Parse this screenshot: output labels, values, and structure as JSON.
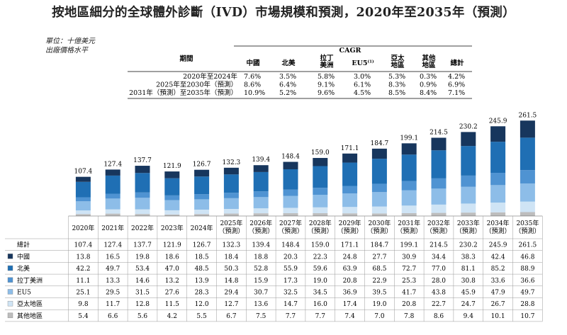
{
  "title": "按地區細分的全球體外診斷（IVD）市場規模和預測，2020年至2035年（預測）",
  "unit_note": "單位：十億美元",
  "price_note": "出廠價格水平",
  "cagr_table": {
    "header": "CAGR",
    "period_label": "期間",
    "columns": [
      "中國",
      "北美",
      "拉丁\n美洲",
      "EU5",
      "亞太\n地區",
      "其他\n地區",
      "總計"
    ],
    "eu5_footnote": "(1)",
    "rows": [
      {
        "period": "2020年至2024年",
        "values": [
          "7.6%",
          "3.5%",
          "5.8%",
          "3.0%",
          "5.3%",
          "0.3%",
          "4.2%"
        ]
      },
      {
        "period": "2025年至2030年（預測）",
        "values": [
          "8.6%",
          "6.4%",
          "9.1%",
          "6.1%",
          "8.3%",
          "0.9%",
          "6.9%"
        ]
      },
      {
        "period": "2031年（預測）至2035年（預測）",
        "values": [
          "10.9%",
          "5.2%",
          "9.6%",
          "4.5%",
          "8.5%",
          "8.4%",
          "7.1%"
        ]
      }
    ]
  },
  "chart_data": {
    "type": "bar",
    "stacked": true,
    "categories": [
      "2020年",
      "2021年",
      "2022年",
      "2023年",
      "2024年",
      "2025年\n（預測）",
      "2026年\n（預測）",
      "2027年\n（預測）",
      "2028年\n（預測）",
      "2029年\n（預測）",
      "2030年\n（預測）",
      "2031年\n（預測）",
      "2032年\n（預測）",
      "2033年\n（預測）",
      "2034年\n（預測）",
      "2035年\n（預測）"
    ],
    "totals_label": "總計",
    "totals": [
      107.4,
      127.4,
      137.7,
      121.9,
      126.7,
      132.3,
      139.4,
      148.4,
      159.0,
      171.1,
      184.7,
      199.1,
      214.5,
      230.2,
      245.9,
      261.5
    ],
    "series": [
      {
        "name": "中國",
        "color": "#17365d",
        "values": [
          13.8,
          16.5,
          19.8,
          18.6,
          18.5,
          18.4,
          18.8,
          20.3,
          22.3,
          24.8,
          27.7,
          30.9,
          34.4,
          38.3,
          42.4,
          46.8
        ]
      },
      {
        "name": "北美",
        "color": "#1f6fb4",
        "values": [
          42.2,
          49.7,
          53.4,
          47.0,
          48.5,
          50.3,
          52.8,
          55.9,
          59.6,
          63.9,
          68.5,
          72.7,
          77.0,
          81.1,
          85.2,
          88.9
        ]
      },
      {
        "name": "拉丁美洲",
        "color": "#4f93d2",
        "values": [
          11.1,
          13.3,
          14.6,
          13.2,
          13.9,
          14.8,
          15.9,
          17.3,
          19.0,
          20.8,
          22.9,
          25.3,
          28.0,
          30.8,
          33.6,
          36.6
        ]
      },
      {
        "name": "EU5",
        "color": "#8dbde8",
        "values": [
          25.1,
          29.5,
          31.5,
          27.6,
          28.3,
          29.4,
          30.7,
          32.5,
          34.5,
          36.9,
          39.5,
          41.7,
          43.8,
          45.9,
          47.9,
          49.7
        ]
      },
      {
        "name": "亞太地區",
        "color": "#cfe4f5",
        "values": [
          9.8,
          11.7,
          12.8,
          11.5,
          12.0,
          12.7,
          13.6,
          14.7,
          16.0,
          17.4,
          19.0,
          20.8,
          22.7,
          24.7,
          26.7,
          28.8
        ]
      },
      {
        "name": "其他地區",
        "color": "#bdbdbd",
        "values": [
          5.4,
          6.6,
          5.6,
          4.2,
          5.5,
          6.7,
          7.5,
          7.7,
          7.7,
          7.4,
          7.0,
          7.8,
          8.6,
          9.4,
          10.1,
          10.7
        ]
      }
    ],
    "ylim": [
      0,
      262
    ]
  }
}
